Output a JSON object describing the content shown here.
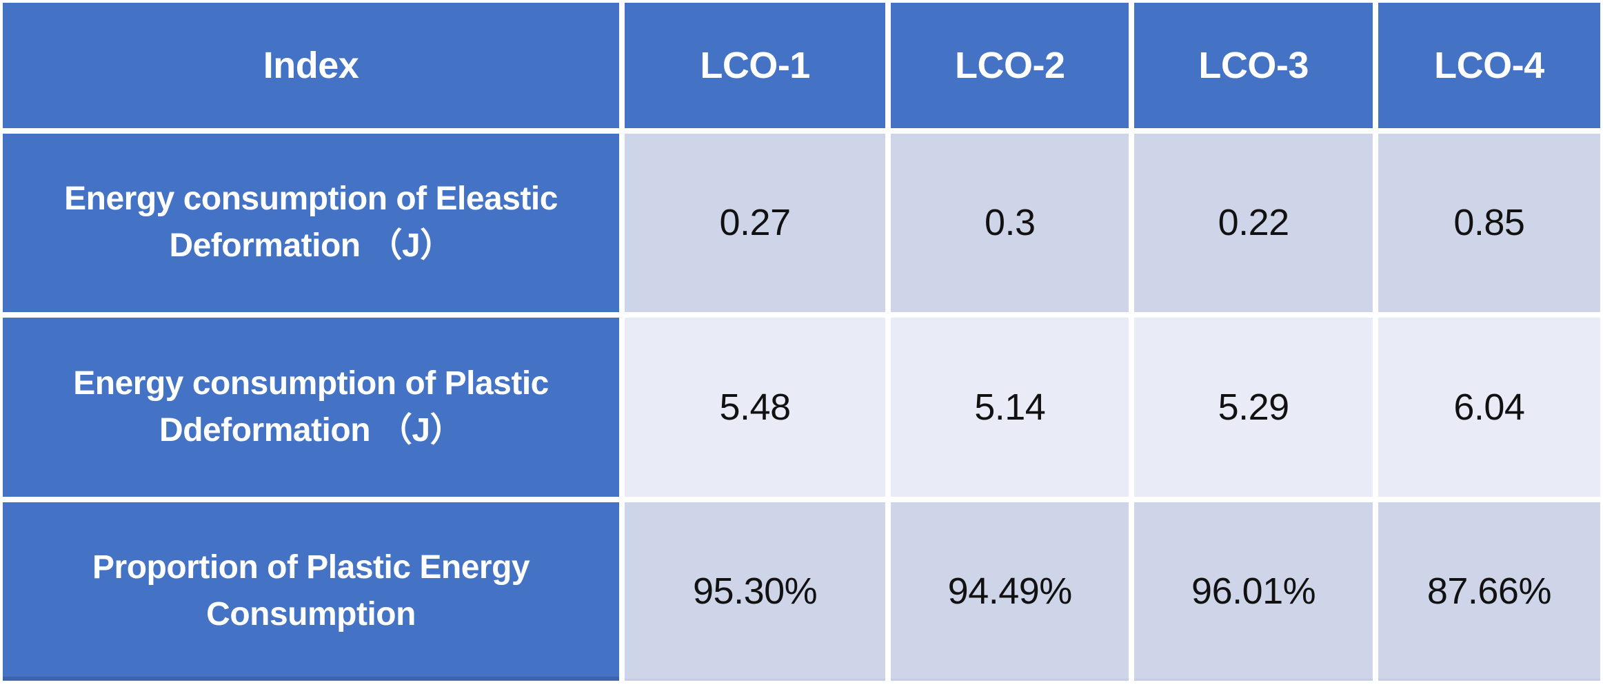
{
  "table": {
    "title_semantic": "Energy consumption comparison of LCO samples",
    "header": {
      "index_label": "Index",
      "columns": [
        "LCO-1",
        "LCO-2",
        "LCO-3",
        "LCO-4"
      ]
    },
    "rows": [
      {
        "label": "Energy consumption of Eleastic Deformation （J）",
        "values": [
          "0.27",
          "0.3",
          "0.22",
          "0.85"
        ]
      },
      {
        "label": "Energy consumption of Plastic Ddeformation （J）",
        "values": [
          "5.48",
          "5.14",
          "5.29",
          "6.04"
        ]
      },
      {
        "label": "Proportion of Plastic Energy Consumption",
        "values": [
          "95.30%",
          "94.49%",
          "96.01%",
          "87.66%"
        ]
      }
    ]
  },
  "chart_data": {
    "type": "table",
    "columns": [
      "Index",
      "LCO-1",
      "LCO-2",
      "LCO-3",
      "LCO-4"
    ],
    "rows": [
      [
        "Energy consumption of Eleastic Deformation （J）",
        0.27,
        0.3,
        0.22,
        0.85
      ],
      [
        "Energy consumption of Plastic Ddeformation （J）",
        5.48,
        5.14,
        5.29,
        6.04
      ],
      [
        "Proportion of Plastic Energy Consumption",
        "95.30%",
        "94.49%",
        "96.01%",
        "87.66%"
      ]
    ]
  },
  "colors": {
    "header_blue": "#4472C4",
    "band_dark": "#CFD5E9",
    "band_light": "#E9EBF6",
    "grid_white": "#FFFFFF",
    "bottom_edge_blue": "#3D63AE",
    "text_on_blue": "#FFFFFF",
    "text_on_band": "#111111"
  }
}
